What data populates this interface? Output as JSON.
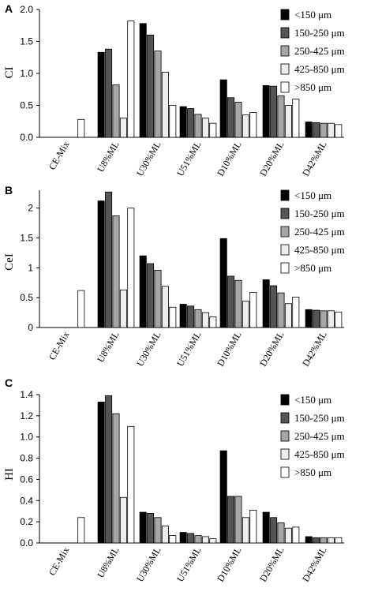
{
  "series_colors": [
    "#000000",
    "#555555",
    "#a6a6a6",
    "#ededed",
    "#ffffff"
  ],
  "chart_data": [
    {
      "type": "bar",
      "panel": "A",
      "ylabel": "CI",
      "ylim": [
        0,
        2.0
      ],
      "yticks": [
        "0.0",
        "0.5",
        "1.0",
        "1.5",
        "2.0"
      ],
      "categories": [
        "CE-Mix",
        "U8%ML",
        "U30%ML",
        "U51%ML",
        "D10%ML",
        "D20%ML",
        "D42%ML"
      ],
      "series": [
        {
          "name": "<150 μm",
          "values": [
            null,
            1.33,
            1.78,
            0.48,
            0.9,
            0.81,
            0.24
          ]
        },
        {
          "name": "150-250 μm",
          "values": [
            null,
            1.38,
            1.6,
            0.45,
            0.62,
            0.8,
            0.23
          ]
        },
        {
          "name": "250-425 μm",
          "values": [
            null,
            0.82,
            1.35,
            0.36,
            0.55,
            0.65,
            0.22
          ]
        },
        {
          "name": "425-850 μm",
          "values": [
            null,
            0.3,
            1.02,
            0.3,
            0.35,
            0.5,
            0.22
          ]
        },
        {
          "name": ">850 μm",
          "values": [
            0.28,
            1.82,
            0.5,
            0.22,
            0.39,
            0.6,
            0.2
          ]
        }
      ]
    },
    {
      "type": "bar",
      "panel": "B",
      "ylabel": "CeI",
      "ylim": [
        0,
        2.3
      ],
      "yticks": [
        "0",
        "0.5",
        "1",
        "1.5",
        "2"
      ],
      "categories": [
        "CE-Mix",
        "U8%ML",
        "U30%ML",
        "U51%ML",
        "D10%ML",
        "D20%ML",
        "D42%ML"
      ],
      "series": [
        {
          "name": "<150 μm",
          "values": [
            null,
            2.12,
            1.2,
            0.39,
            1.49,
            0.8,
            0.3
          ]
        },
        {
          "name": "150-250 μm",
          "values": [
            null,
            2.27,
            1.07,
            0.36,
            0.86,
            0.7,
            0.29
          ]
        },
        {
          "name": "250-425 μm",
          "values": [
            null,
            1.87,
            0.96,
            0.3,
            0.79,
            0.58,
            0.28
          ]
        },
        {
          "name": "425-850 μm",
          "values": [
            null,
            0.63,
            0.69,
            0.25,
            0.44,
            0.4,
            0.28
          ]
        },
        {
          "name": ">850 μm",
          "values": [
            0.62,
            2.0,
            0.34,
            0.18,
            0.59,
            0.51,
            0.26
          ]
        }
      ]
    },
    {
      "type": "bar",
      "panel": "C",
      "ylabel": "HI",
      "ylim": [
        0,
        1.4
      ],
      "yticks": [
        "0.0",
        "0.2",
        "0.4",
        "0.6",
        "0.8",
        "1.0",
        "1.2",
        "1.4"
      ],
      "categories": [
        "CE-Mix",
        "U8%ML",
        "U30%ML",
        "U51%ML",
        "D10%ML",
        "D20%ML",
        "D42%ML"
      ],
      "series": [
        {
          "name": "<150 μm",
          "values": [
            null,
            1.33,
            0.29,
            0.1,
            0.87,
            0.29,
            0.06
          ]
        },
        {
          "name": "150-250 μm",
          "values": [
            null,
            1.39,
            0.28,
            0.09,
            0.44,
            0.24,
            0.05
          ]
        },
        {
          "name": "250-425 μm",
          "values": [
            null,
            1.22,
            0.24,
            0.07,
            0.44,
            0.19,
            0.05
          ]
        },
        {
          "name": "425-850 μm",
          "values": [
            null,
            0.43,
            0.16,
            0.06,
            0.24,
            0.14,
            0.05
          ]
        },
        {
          "name": ">850 μm",
          "values": [
            0.24,
            1.1,
            0.07,
            0.04,
            0.31,
            0.15,
            0.05
          ]
        }
      ]
    }
  ]
}
